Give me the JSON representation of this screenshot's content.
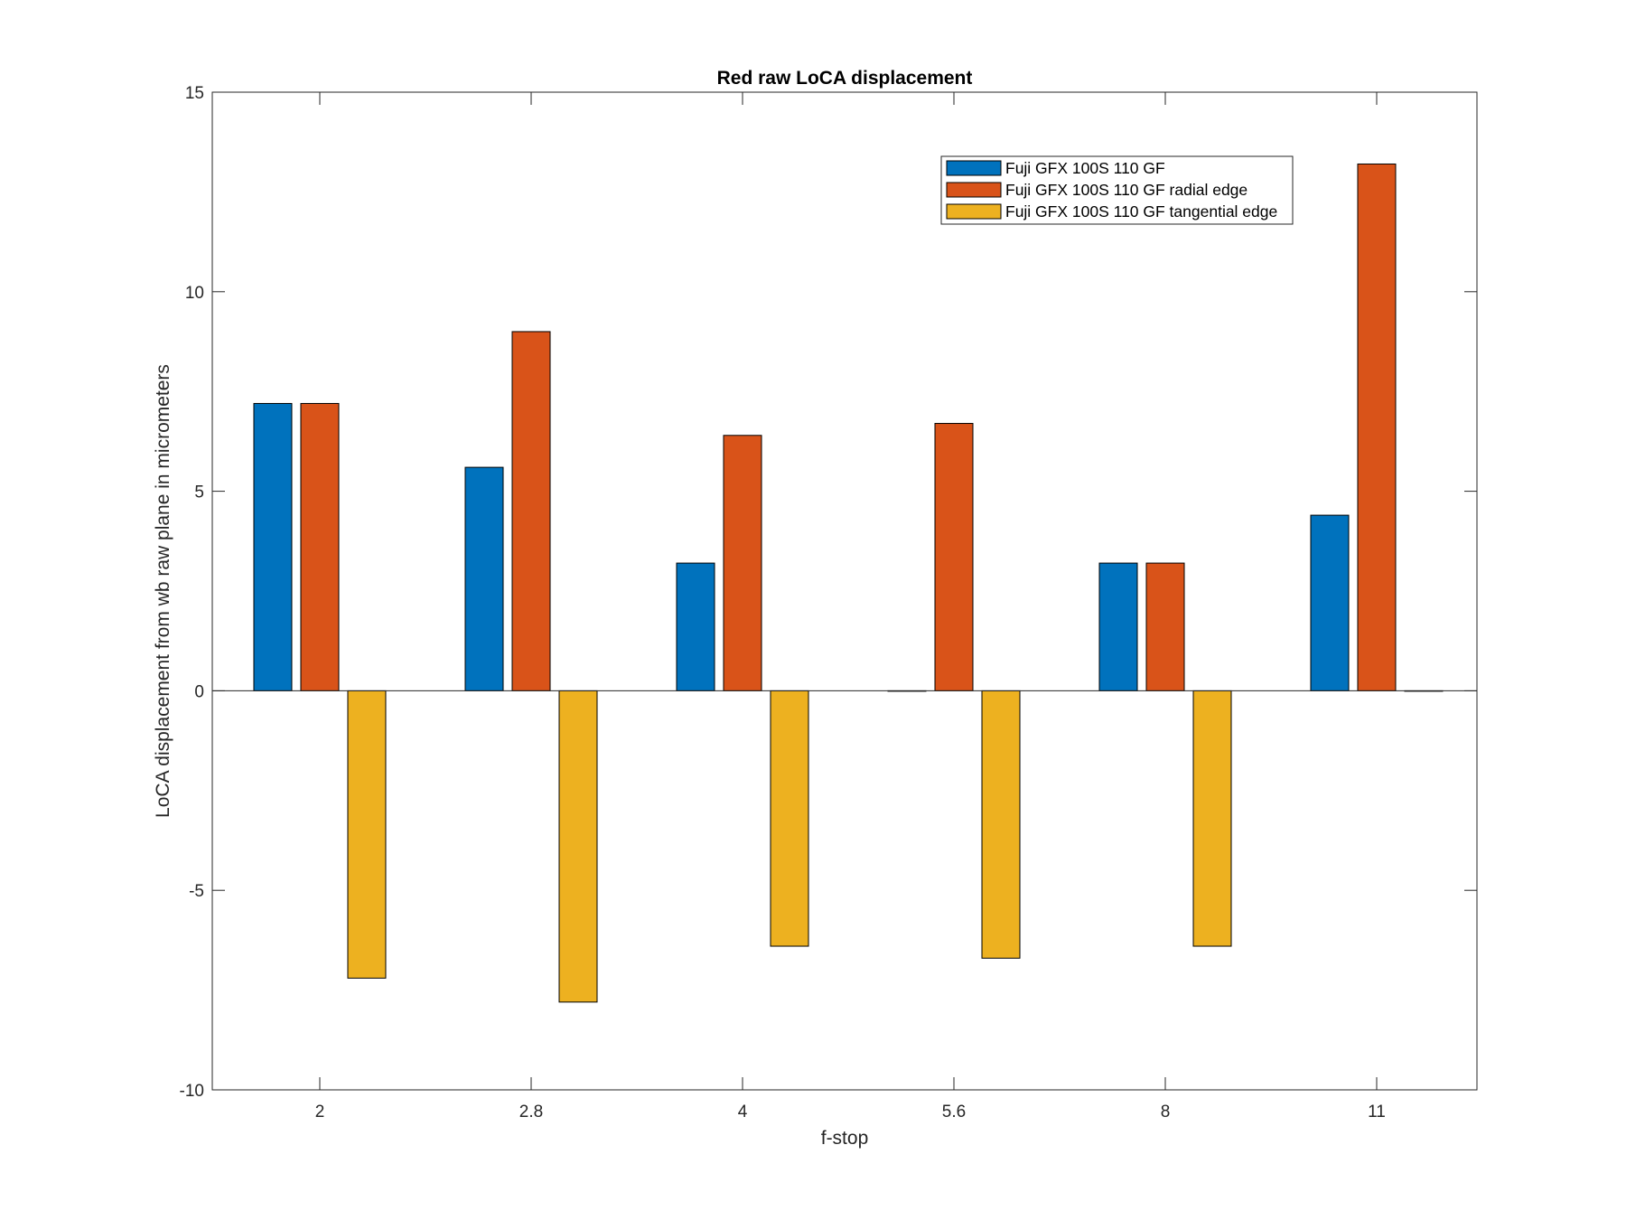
{
  "chart_data": {
    "type": "bar",
    "title": "Red raw  LoCA displacement",
    "xlabel": "f-stop",
    "ylabel": "LoCA displacement from wb raw plane in micrometers",
    "categories": [
      "2",
      "2.8",
      "4",
      "5.6",
      "8",
      "11"
    ],
    "ylim": [
      -10,
      15
    ],
    "yticks": [
      -10,
      -5,
      0,
      5,
      10,
      15
    ],
    "ytick_labels": [
      "-10",
      "-5",
      "0",
      "5",
      "10",
      "15"
    ],
    "grid": false,
    "legend_position": "top-right",
    "series": [
      {
        "name": "Fuji GFX 100S 110 GF",
        "color": "#0072BD",
        "values": [
          7.2,
          5.6,
          3.2,
          0,
          3.2,
          4.4
        ]
      },
      {
        "name": "Fuji GFX 100S 110 GF radial edge",
        "color": "#D95319",
        "values": [
          7.2,
          9.0,
          6.4,
          6.7,
          3.2,
          13.2
        ]
      },
      {
        "name": "Fuji GFX 100S 110 GF tangential edge",
        "color": "#EDB120",
        "values": [
          -7.2,
          -7.8,
          -6.4,
          -6.7,
          -6.4,
          0
        ]
      }
    ]
  }
}
